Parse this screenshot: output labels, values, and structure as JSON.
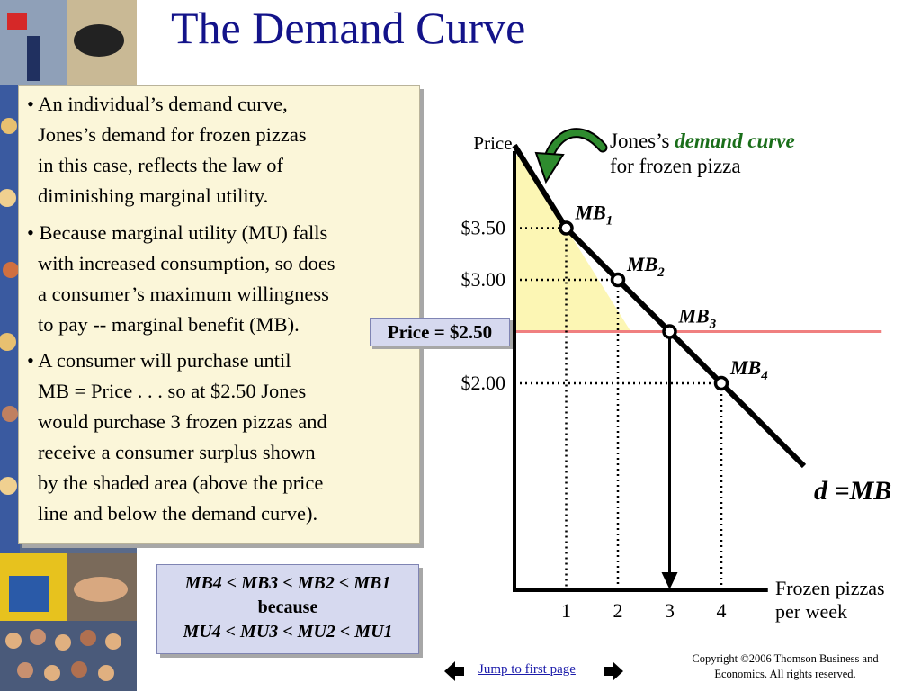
{
  "slide": {
    "title": "The Demand Curve",
    "bullets": [
      {
        "lines": [
          "• An individual’s demand curve,",
          "Jones’s demand for frozen pizzas",
          "in this case, reflects the law of",
          "diminishing marginal utility."
        ]
      },
      {
        "lines": [
          "• Because marginal utility (MU) falls",
          "with increased consumption, so does",
          "a consumer’s maximum willingness",
          "to pay -- marginal benefit (MB)."
        ]
      },
      {
        "lines": [
          "• A consumer will purchase until",
          "MB = Price . . .  so at $2.50 Jones",
          "would purchase 3 frozen pizzas and",
          "receive a consumer surplus shown",
          "by the shaded area (above the price",
          "line and below the demand curve)."
        ]
      }
    ],
    "comparison": {
      "mb_line": "MB4 < MB3 < MB2 < MB1",
      "because": "because",
      "mu_line": "MU4 < MU3 < MU2 < MU1"
    },
    "nav": {
      "jump_label": "Jump to first page"
    },
    "copyright": [
      "Copyright ©2006  Thomson Business and",
      "Economics. All rights reserved."
    ]
  },
  "chart_data": {
    "type": "line",
    "ylabel": "Price",
    "xlabel": "Frozen pizzas per week",
    "x_ticks": [
      "1",
      "2",
      "3",
      "4"
    ],
    "y_ticks": [
      "$3.50",
      "$3.00",
      "$2.00"
    ],
    "xlim": [
      0,
      4.9
    ],
    "ylim": [
      0,
      4.2
    ],
    "series": [
      {
        "name": "d =MB",
        "x": [
          0,
          1,
          2,
          3,
          4,
          5.6
        ],
        "y": [
          4.3,
          3.5,
          3.0,
          2.5,
          2.0,
          1.2
        ]
      }
    ],
    "points": [
      {
        "label": "MB1",
        "x": 1,
        "y": 3.5
      },
      {
        "label": "MB2",
        "x": 2,
        "y": 3.0
      },
      {
        "label": "MB3",
        "x": 3,
        "y": 2.5
      },
      {
        "label": "MB4",
        "x": 4,
        "y": 2.0
      }
    ],
    "price_line": {
      "label": "Price =  $2.50",
      "y": 2.5
    },
    "annotation": {
      "prefix": "Jones’s ",
      "emphasis": "demand curve",
      "line2": "for frozen pizza"
    },
    "colors": {
      "curve": "#000000",
      "price_line": "#f08080",
      "surplus": "#fcf6b4",
      "annotation": "#1a6e1a",
      "arrow": "#2e8b2e"
    }
  }
}
